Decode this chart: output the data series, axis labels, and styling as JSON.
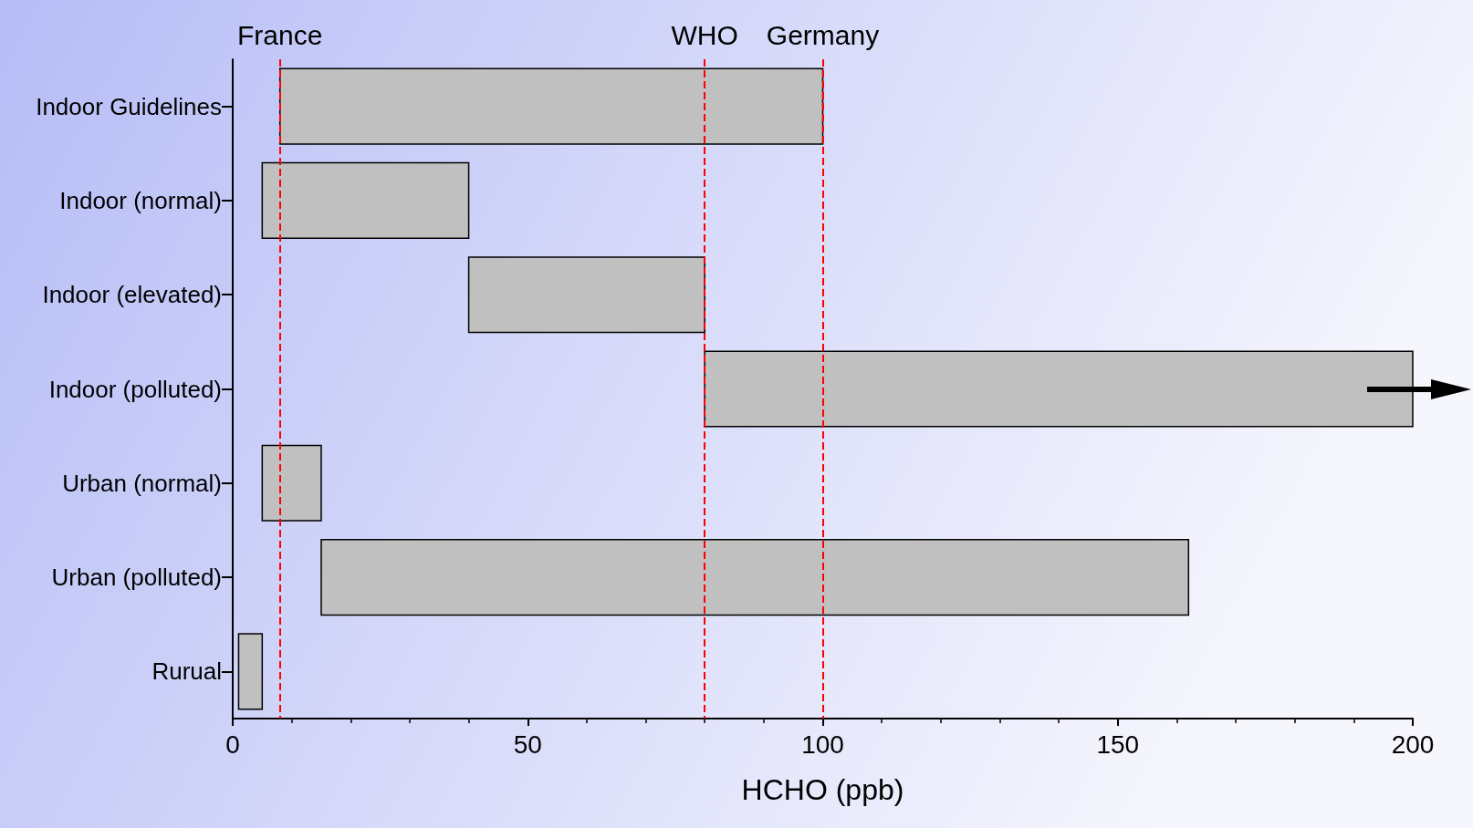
{
  "chart_data": {
    "type": "bar",
    "orientation": "horizontal",
    "xlabel": "HCHO (ppb)",
    "categories": [
      "Indoor Guidelines",
      "Indoor (normal)",
      "Indoor (elevated)",
      "Indoor (polluted)",
      "Urban (normal)",
      "Urban (polluted)",
      "Rurual"
    ],
    "base": [
      8,
      5,
      40,
      80,
      5,
      15,
      1
    ],
    "values": [
      92,
      35,
      40,
      120,
      10,
      147,
      4
    ],
    "color": "#c0c0c0",
    "xlim": [
      0,
      200
    ],
    "xticks": [
      0,
      50,
      100,
      150,
      200
    ],
    "ref_lines": [
      {
        "axis": "x",
        "value": 8,
        "label": "France",
        "color": "#ff0000",
        "line_style": "dashed"
      },
      {
        "axis": "x",
        "value": 80,
        "label": "WHO",
        "color": "#ff0000",
        "line_style": "dashed"
      },
      {
        "axis": "x",
        "value": 100,
        "label": "Germany",
        "color": "#ff0000",
        "line_style": "dashed"
      }
    ],
    "grid": false
  }
}
